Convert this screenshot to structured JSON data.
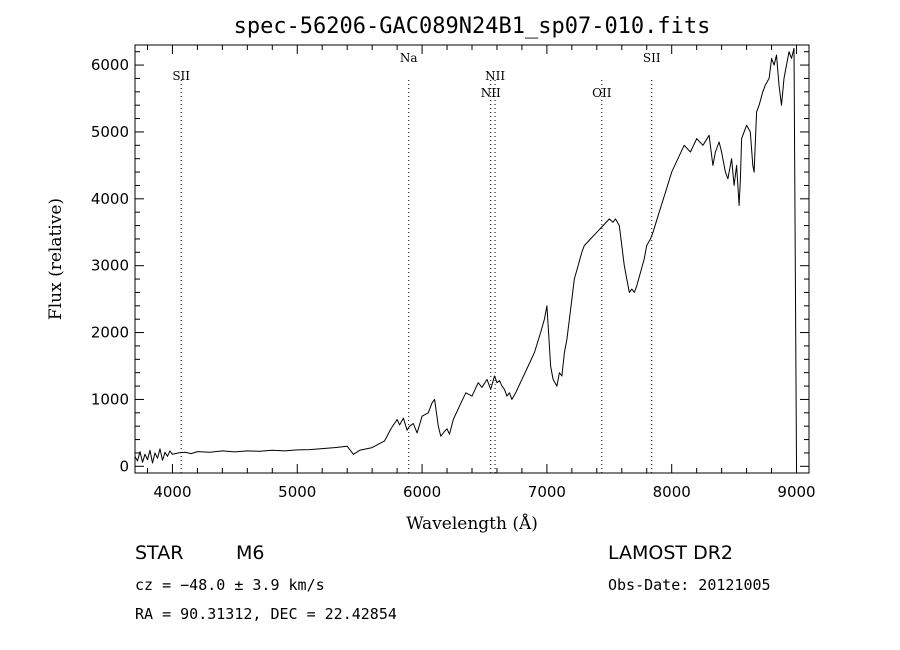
{
  "chart_data": {
    "type": "line",
    "title": "spec-56206-GAC089N24B1_sp07-010.fits",
    "xlabel": "Wavelength (Å)",
    "ylabel": "Flux (relative)",
    "xlim": [
      3700,
      9100
    ],
    "ylim": [
      -100,
      6300
    ],
    "xticks": [
      4000,
      5000,
      6000,
      7000,
      8000,
      9000
    ],
    "yticks": [
      0,
      1000,
      2000,
      3000,
      4000,
      5000,
      6000
    ],
    "series": [
      {
        "x": [
          3700,
          3720,
          3740,
          3760,
          3780,
          3800,
          3820,
          3840,
          3860,
          3880,
          3900,
          3920,
          3940,
          3960,
          3980,
          4000,
          4050,
          4100,
          4150,
          4200,
          4300,
          4400,
          4500,
          4600,
          4700,
          4800,
          4900,
          5000,
          5100,
          5200,
          5300,
          5400,
          5450,
          5500,
          5600,
          5700,
          5750,
          5800,
          5820,
          5850,
          5880,
          5900,
          5930,
          5960,
          6000,
          6050,
          6080,
          6100,
          6130,
          6150,
          6180,
          6200,
          6220,
          6250,
          6300,
          6350,
          6400,
          6450,
          6480,
          6520,
          6550,
          6580,
          6600,
          6620,
          6640,
          6660,
          6680,
          6700,
          6720,
          6750,
          6800,
          6850,
          6900,
          6950,
          6980,
          7000,
          7020,
          7030,
          7050,
          7080,
          7100,
          7120,
          7140,
          7160,
          7180,
          7200,
          7220,
          7250,
          7280,
          7300,
          7350,
          7400,
          7450,
          7500,
          7530,
          7550,
          7580,
          7600,
          7620,
          7640,
          7660,
          7680,
          7700,
          7720,
          7750,
          7780,
          7800,
          7830,
          7850,
          7900,
          7950,
          8000,
          8050,
          8100,
          8150,
          8200,
          8250,
          8300,
          8330,
          8350,
          8380,
          8400,
          8430,
          8450,
          8480,
          8500,
          8520,
          8540,
          8550,
          8560,
          8580,
          8600,
          8630,
          8650,
          8660,
          8680,
          8700,
          8730,
          8750,
          8780,
          8800,
          8820,
          8840,
          8860,
          8880,
          8900,
          8920,
          8940,
          8960,
          8980,
          9000
        ],
        "y": [
          150,
          80,
          220,
          60,
          180,
          100,
          240,
          50,
          200,
          120,
          260,
          90,
          210,
          150,
          230,
          180,
          200,
          210,
          190,
          220,
          210,
          230,
          215,
          230,
          225,
          240,
          230,
          245,
          250,
          265,
          280,
          300,
          180,
          240,
          280,
          380,
          560,
          700,
          620,
          720,
          540,
          600,
          640,
          500,
          750,
          800,
          950,
          1000,
          600,
          450,
          520,
          560,
          480,
          700,
          900,
          1100,
          1050,
          1250,
          1180,
          1300,
          1150,
          1350,
          1250,
          1280,
          1200,
          1150,
          1050,
          1100,
          1000,
          1100,
          1300,
          1500,
          1700,
          2000,
          2200,
          2400,
          1800,
          1500,
          1300,
          1200,
          1400,
          1350,
          1700,
          1900,
          2200,
          2500,
          2800,
          3000,
          3200,
          3300,
          3400,
          3500,
          3600,
          3700,
          3650,
          3700,
          3600,
          3300,
          3000,
          2800,
          2600,
          2650,
          2600,
          2700,
          2900,
          3100,
          3300,
          3400,
          3500,
          3800,
          4100,
          4400,
          4600,
          4800,
          4700,
          4900,
          4800,
          4950,
          4500,
          4700,
          4850,
          4700,
          4400,
          4300,
          4600,
          4200,
          4500,
          3900,
          4300,
          4900,
          5000,
          5100,
          5000,
          4500,
          4400,
          5300,
          5400,
          5600,
          5700,
          5800,
          6100,
          6000,
          6150,
          5700,
          5400,
          5800,
          6000,
          6200,
          6100,
          6250,
          0
        ]
      }
    ],
    "vlines": [
      {
        "label": "SII",
        "x": 4070,
        "label_row": 0
      },
      {
        "label": "Na",
        "x": 5893,
        "label_row": -1
      },
      {
        "label": "NII",
        "x": 6550,
        "label_row": 1
      },
      {
        "label": "NII",
        "x": 6585,
        "label_row": 0
      },
      {
        "label": "OII",
        "x": 7440,
        "label_row": 1
      },
      {
        "label": "SII",
        "x": 7840,
        "label_row": -1
      }
    ]
  },
  "info": {
    "object_class": "STAR",
    "subclass": "M6",
    "survey": "LAMOST DR2",
    "redshift": "cz = −48.0 ± 3.9 km/s",
    "obs_date": "Obs-Date: 20121005",
    "coords": "RA =  90.31312, DEC =  22.42854"
  }
}
